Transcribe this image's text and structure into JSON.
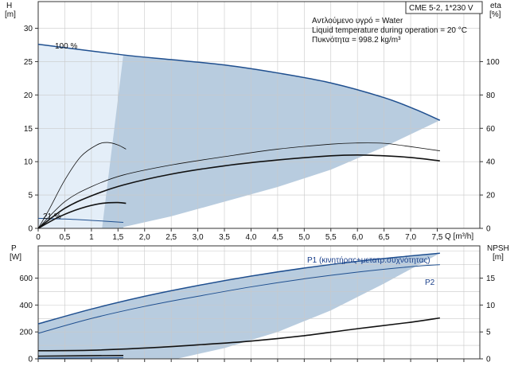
{
  "header": {
    "model_box": "CME 5-2, 1*230 V",
    "notes": [
      "Αντλούμενο υγρό = Water",
      "Liquid temperature during operation = 20 °C",
      "Πυκνότητα = 998.2 kg/m³"
    ]
  },
  "colors": {
    "shade": "#b8ccdf",
    "shade_light": "#e4eef8",
    "curve_blue": "#1f4f8f",
    "curve_black": "#111111",
    "axis": "#333333"
  },
  "chart_data": [
    {
      "type": "line",
      "xlabel": "Q [m³/h]",
      "ylabel_left": "H",
      "ylabel_left_unit": "[m]",
      "ylabel_right": "eta",
      "ylabel_right_unit": "[%]",
      "x_ticks": [
        "0",
        "0,5",
        "1",
        "1,5",
        "2,0",
        "2,5",
        "3,0",
        "3,5",
        "4,0",
        "4,5",
        "5,0",
        "5,5",
        "6,0",
        "6,5",
        "7,0",
        "7,5"
      ],
      "y_left_ticks": [
        "0",
        "5",
        "10",
        "15",
        "20",
        "25",
        "30"
      ],
      "y_right_ticks": [
        "0",
        "20",
        "40",
        "60",
        "80",
        "100"
      ],
      "xlim": [
        0,
        8.3
      ],
      "ylim_left": [
        0,
        34
      ],
      "ylim_right": [
        0,
        136
      ],
      "grid": true,
      "annotations": [
        "100 %",
        "21 %"
      ],
      "series": [
        {
          "axis": "left",
          "style": "blue",
          "points": [
            [
              0,
              27.6
            ],
            [
              1.6,
              26.0
            ],
            [
              2.5,
              25.3
            ],
            [
              3.5,
              24.5
            ],
            [
              4.5,
              23.3
            ],
            [
              5.5,
              21.8
            ],
            [
              6.5,
              19.6
            ],
            [
              7.1,
              17.8
            ],
            [
              7.55,
              16.2
            ]
          ]
        },
        {
          "axis": "left",
          "style": "blue-thin",
          "points": [
            [
              0,
              1.5
            ],
            [
              0.5,
              1.4
            ],
            [
              1.0,
              1.2
            ],
            [
              1.6,
              0.9
            ]
          ]
        },
        {
          "axis": "right",
          "style": "thin",
          "points": [
            [
              0,
              0
            ],
            [
              0.2,
              11
            ],
            [
              0.5,
              29
            ],
            [
              0.8,
              43
            ],
            [
              1.1,
              50
            ],
            [
              1.3,
              51.5
            ],
            [
              1.5,
              50
            ],
            [
              1.65,
              47.5
            ]
          ]
        },
        {
          "axis": "right",
          "style": "thin",
          "points": [
            [
              0,
              0
            ],
            [
              0.5,
              16
            ],
            [
              1,
              25
            ],
            [
              1.6,
              32
            ],
            [
              2.5,
              38
            ],
            [
              3.5,
              43
            ],
            [
              4.5,
              47.5
            ],
            [
              5.5,
              50.5
            ],
            [
              6.0,
              51.2
            ],
            [
              6.5,
              51
            ],
            [
              7.0,
              49
            ],
            [
              7.55,
              46.5
            ]
          ]
        },
        {
          "axis": "right",
          "style": "bold",
          "points": [
            [
              0,
              0
            ],
            [
              0.5,
              12
            ],
            [
              1,
              19.5
            ],
            [
              1.6,
              26
            ],
            [
              2.5,
              32.5
            ],
            [
              3.5,
              37.5
            ],
            [
              4.5,
              41
            ],
            [
              5.5,
              43.5
            ],
            [
              6.0,
              44
            ],
            [
              6.5,
              43.5
            ],
            [
              7.0,
              42.5
            ],
            [
              7.55,
              40.5
            ]
          ]
        },
        {
          "axis": "right",
          "style": "bold",
          "points": [
            [
              0,
              0
            ],
            [
              0.4,
              7
            ],
            [
              0.8,
              12
            ],
            [
              1.2,
              15
            ],
            [
              1.5,
              15.5
            ],
            [
              1.65,
              15
            ]
          ]
        }
      ]
    },
    {
      "type": "line",
      "xlabel": "",
      "ylabel_left": "P",
      "ylabel_left_unit": "[W]",
      "ylabel_right": "NPSH",
      "ylabel_right_unit": "[m]",
      "y_left_ticks": [
        "0",
        "200",
        "400",
        "600"
      ],
      "y_right_ticks": [
        "0",
        "5",
        "10",
        "15"
      ],
      "ylim_left": [
        0,
        840
      ],
      "ylim_right": [
        0,
        21
      ],
      "grid": true,
      "legend": [
        "P1 (κινητήρας+μετατρ.συχνότητας)",
        "P2"
      ],
      "series": [
        {
          "name": "P1 (κινητήρας+μετατρ.συχνότητας)",
          "axis": "left",
          "style": "blue",
          "points": [
            [
              0,
              260
            ],
            [
              1,
              370
            ],
            [
              2,
              465
            ],
            [
              3,
              545
            ],
            [
              4,
              615
            ],
            [
              5,
              675
            ],
            [
              6,
              725
            ],
            [
              7,
              765
            ],
            [
              7.55,
              785
            ]
          ]
        },
        {
          "name": "P2",
          "axis": "left",
          "style": "blue-thin",
          "points": [
            [
              0,
              190
            ],
            [
              1,
              300
            ],
            [
              2,
              390
            ],
            [
              3,
              465
            ],
            [
              4,
              535
            ],
            [
              5,
              595
            ],
            [
              6,
              645
            ],
            [
              7,
              685
            ],
            [
              7.55,
              700
            ]
          ]
        },
        {
          "axis": "right",
          "style": "bold",
          "points": [
            [
              0,
              1.5
            ],
            [
              1,
              1.6
            ],
            [
              2,
              2.0
            ],
            [
              3,
              2.6
            ],
            [
              4,
              3.3
            ],
            [
              5,
              4.3
            ],
            [
              6,
              5.6
            ],
            [
              7,
              6.8
            ],
            [
              7.55,
              7.6
            ]
          ]
        },
        {
          "axis": "left",
          "style": "bold",
          "points": [
            [
              0,
              20
            ],
            [
              1.6,
              25
            ]
          ]
        },
        {
          "axis": "left",
          "style": "blue-thin",
          "points": [
            [
              0,
              5
            ],
            [
              1.6,
              8
            ]
          ]
        }
      ]
    }
  ]
}
